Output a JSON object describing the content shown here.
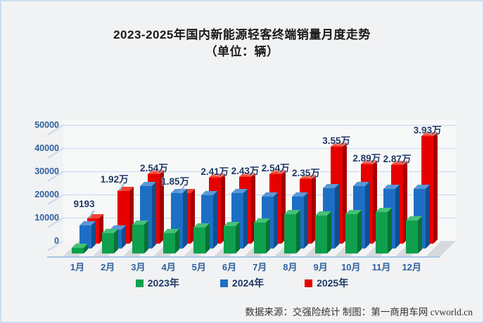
{
  "title": {
    "line1": "2023-2025年国内新能源轻客终端销量月度走势",
    "line2": "（单位：辆）"
  },
  "chart_data": {
    "type": "bar",
    "title": "2023-2025年国内新能源轻客终端销量月度走势",
    "unit_label": "（单位：辆）",
    "categories": [
      "1月",
      "2月",
      "3月",
      "4月",
      "5月",
      "6月",
      "7月",
      "8月",
      "9月",
      "10月",
      "11月",
      "12月"
    ],
    "series": [
      {
        "name": "2023年",
        "color": "#0FA04D",
        "color_top": "#45C078",
        "color_side": "#097236",
        "values": [
          2000,
          7400,
          10400,
          7400,
          9400,
          9900,
          11400,
          14300,
          13900,
          14400,
          15100,
          12100
        ]
      },
      {
        "name": "2024年",
        "color": "#1D6FC5",
        "color_top": "#5A97D6",
        "color_side": "#134E8E",
        "values": [
          8400,
          6800,
          22800,
          20200,
          19600,
          20200,
          18900,
          18900,
          22100,
          22900,
          21700,
          21900
        ]
      },
      {
        "name": "2025年",
        "color": "#E60000",
        "color_top": "#F04330",
        "color_side": "#A30000",
        "values": [
          9193,
          19200,
          25400,
          18500,
          24100,
          24300,
          25400,
          23500,
          35500,
          28900,
          28700,
          39300
        ],
        "labels": [
          "9193",
          "1.92万",
          "2.54万",
          "1.85万",
          "2.41万",
          "2.43万",
          "2.54万",
          "2.35万",
          "3.55万",
          "2.89万",
          "2.87万",
          "3.93万"
        ],
        "label_leader_lines": [
          true,
          true,
          false,
          true,
          false,
          false,
          false,
          false,
          false,
          false,
          false,
          false
        ]
      }
    ],
    "y_ticks": [
      0,
      10000,
      20000,
      30000,
      40000,
      50000
    ],
    "ylim": [
      0,
      50000
    ],
    "grid": true,
    "legend_position": "bottom",
    "gridline_color": "#C5D9F1",
    "axis_label_color": "#30609F",
    "value_label_color": "#1F3864"
  },
  "footer": {
    "text": "数据来源：交强险统计 制图：第一商用车网 cvworld.cn"
  }
}
